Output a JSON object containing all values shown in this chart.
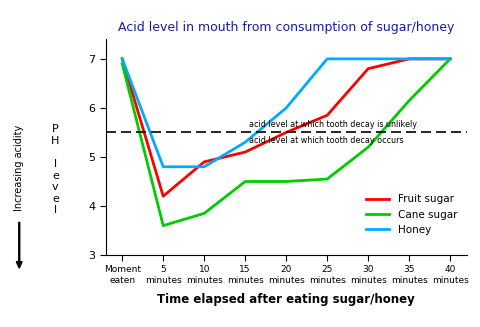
{
  "title": "Acid level in mouth from consumption of sugar/honey",
  "xlabel": "Time elapsed after eating sugar/honey",
  "x_labels": [
    "Moment\neaten",
    "5\nminutes",
    "10\nminutes",
    "15\nminutes",
    "20\nminutes",
    "25\nminutes",
    "30\nminutes",
    "35\nminutes",
    "40\nminutes"
  ],
  "x_values": [
    0,
    5,
    10,
    15,
    20,
    25,
    30,
    35,
    40
  ],
  "fruit_sugar": [
    7.0,
    4.2,
    4.9,
    5.1,
    5.5,
    5.85,
    6.8,
    7.0,
    7.0
  ],
  "cane_sugar": [
    6.9,
    3.6,
    3.85,
    4.5,
    4.5,
    4.55,
    5.2,
    6.15,
    7.0
  ],
  "honey": [
    7.0,
    4.8,
    4.8,
    5.3,
    6.0,
    7.0,
    7.0,
    7.0,
    7.0
  ],
  "fruit_sugar_color": "#ff0000",
  "cane_sugar_color": "#00cc00",
  "honey_color": "#00aaff",
  "dashed_line_y": 5.5,
  "ylim": [
    3,
    7.4
  ],
  "yticks": [
    3,
    4,
    5,
    6,
    7
  ],
  "annotation1": "acid level at which tooth decay is unlikely",
  "annotation2": "acid level at which tooth decay occurs",
  "title_color": "#1a1aaa",
  "xlabel_color": "#000000",
  "background_color": "#ffffff",
  "ph_label": "P\nH\n\nl\ne\nv\ne\nl",
  "increasing_acidity": "Increasing acidity",
  "legend_fruit": "Fruit sugar",
  "legend_cane": "Cane sugar",
  "legend_honey": "Honey"
}
